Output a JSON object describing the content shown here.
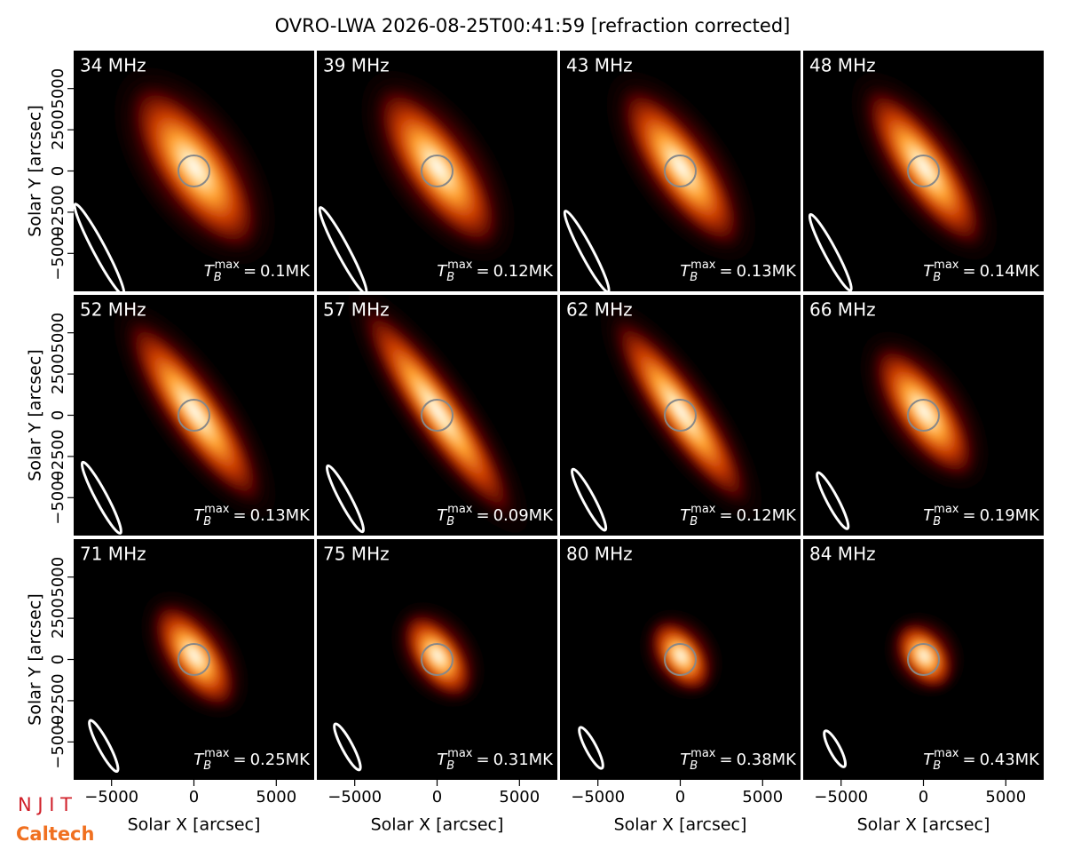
{
  "chart_data": {
    "type": "image-grid",
    "title": "OVRO-LWA 2026-08-25T00:41:59 [refraction corrected]",
    "xlabel": "Solar X [arcsec]",
    "ylabel": "Solar Y [arcsec]",
    "xlim": [
      -7300,
      7300
    ],
    "ylim": [
      -7300,
      7300
    ],
    "xticks": [
      {
        "value": -5000,
        "label": "−5000"
      },
      0,
      5000
    ],
    "yticks": [
      {
        "value": -5000,
        "label": "−5000"
      },
      {
        "value": -2500,
        "label": "−2500"
      },
      0,
      2500,
      5000
    ],
    "tb_symbol": {
      "base": "T",
      "sub": "B",
      "sup": "max",
      "sign": "="
    },
    "categories": [
      "34 MHz",
      "39 MHz",
      "43 MHz",
      "48 MHz",
      "52 MHz",
      "57 MHz",
      "62 MHz",
      "66 MHz",
      "71 MHz",
      "75 MHz",
      "80 MHz",
      "84 MHz"
    ],
    "values": [
      0.1,
      0.12,
      0.13,
      0.14,
      0.13,
      0.09,
      0.12,
      0.19,
      0.25,
      0.31,
      0.38,
      0.43
    ],
    "value_labels": [
      "0.1MK",
      "0.12MK",
      "0.13MK",
      "0.14MK",
      "0.13MK",
      "0.09MK",
      "0.12MK",
      "0.19MK",
      "0.25MK",
      "0.31MK",
      "0.38MK",
      "0.43MK"
    ],
    "logos": [
      "N J I T",
      "Caltech"
    ]
  }
}
